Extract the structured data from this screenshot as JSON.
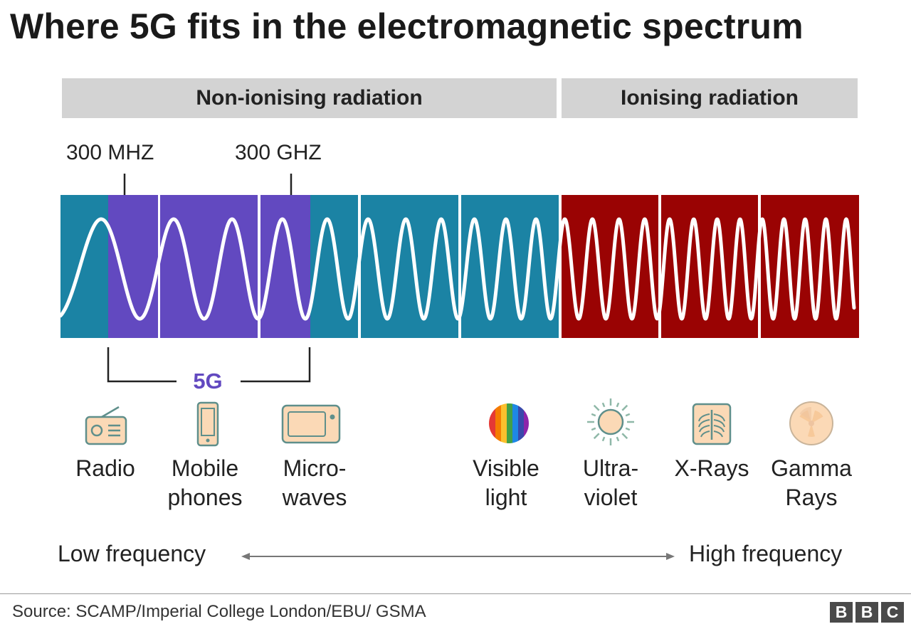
{
  "title": "Where 5G fits in the electromagnetic spectrum",
  "bands": {
    "non_ionising": "Non-ionising radiation",
    "ionising": "Ionising radiation"
  },
  "markers": {
    "low": "300 MHZ",
    "high": "300 GHZ"
  },
  "fiveg_label": "5G",
  "applications": [
    {
      "icon": "radio-icon",
      "lines": [
        "Radio"
      ]
    },
    {
      "icon": "mobile-phone-icon",
      "lines": [
        "Mobile",
        "phones"
      ]
    },
    {
      "icon": "microwave-icon",
      "lines": [
        "Micro-",
        "waves"
      ]
    },
    {
      "icon": "visible-light-icon",
      "lines": [
        "Visible",
        "light"
      ]
    },
    {
      "icon": "ultraviolet-sun-icon",
      "lines": [
        "Ultra-",
        "violet"
      ]
    },
    {
      "icon": "x-ray-icon",
      "lines": [
        "X-Rays"
      ]
    },
    {
      "icon": "radiation-icon",
      "lines": [
        "Gamma",
        "Rays"
      ]
    }
  ],
  "frequency_axis": {
    "low": "Low frequency",
    "high": "High frequency"
  },
  "source": "Source: SCAMP/Imperial College London/EBU/ GSMA",
  "logo": [
    "B",
    "B",
    "C"
  ],
  "colors": {
    "non_ionising_block": "#1b83a4",
    "fiveg_block": "#6249c0",
    "ionising_block": "#9a0303",
    "wave": "#ffffff",
    "fiveg_text": "#6249c0",
    "icon_fill": "#fbd9b6",
    "icon_stroke": "#5f8f8b"
  }
}
